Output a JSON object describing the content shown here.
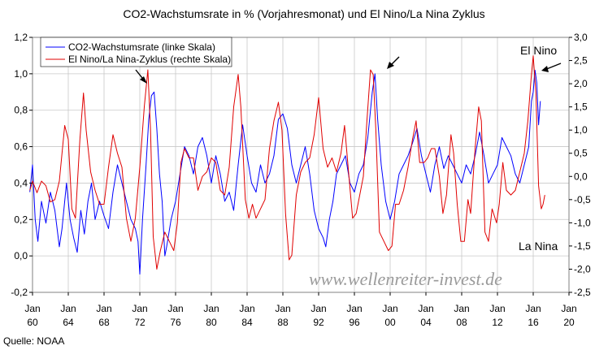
{
  "chart_data": {
    "type": "line",
    "title": "CO2-Wachstumsrate in % (Vorjahresmonat) und El Nino/La Nina Zyklus",
    "x_range": [
      1960,
      2020
    ],
    "x_ticks": [
      {
        "x": 1960,
        "label": "Jan|60"
      },
      {
        "x": 1964,
        "label": "Jan|64"
      },
      {
        "x": 1968,
        "label": "Jan|68"
      },
      {
        "x": 1972,
        "label": "Jan|72"
      },
      {
        "x": 1976,
        "label": "Jan|76"
      },
      {
        "x": 1980,
        "label": "Jan|80"
      },
      {
        "x": 1984,
        "label": "Jan|84"
      },
      {
        "x": 1988,
        "label": "Jan|88"
      },
      {
        "x": 1992,
        "label": "Jan|92"
      },
      {
        "x": 1996,
        "label": "Jan|96"
      },
      {
        "x": 2000,
        "label": "Jan|00"
      },
      {
        "x": 2004,
        "label": "Jan|04"
      },
      {
        "x": 2008,
        "label": "Jan|08"
      },
      {
        "x": 2012,
        "label": "Jan|12"
      },
      {
        "x": 2016,
        "label": "Jan|16"
      },
      {
        "x": 2020,
        "label": "Jan|20"
      }
    ],
    "y_left": {
      "min": -0.2,
      "max": 1.2,
      "step": 0.2,
      "ticks": [
        "-0,2",
        "0,0",
        "0,2",
        "0,4",
        "0,6",
        "0,8",
        "1,0",
        "1,2"
      ]
    },
    "y_right": {
      "min": -2.5,
      "max": 3.0,
      "step": 0.5,
      "ticks": [
        "-2,5",
        "-2,0",
        "-1,5",
        "-1,0",
        "-0,5",
        "0,0",
        "0,5",
        "1,0",
        "1,5",
        "2,0",
        "2,5",
        "3,0"
      ]
    },
    "grid": true,
    "legend_position": "top-left",
    "series": [
      {
        "name": "CO2-Wachstumsrate (linke Skala)",
        "axis": "left",
        "color": "#0000ff",
        "points": [
          [
            1959.7,
            0.35
          ],
          [
            1960.0,
            0.5
          ],
          [
            1960.3,
            0.2
          ],
          [
            1960.6,
            0.08
          ],
          [
            1961.0,
            0.3
          ],
          [
            1961.5,
            0.18
          ],
          [
            1962.0,
            0.35
          ],
          [
            1962.5,
            0.25
          ],
          [
            1963.0,
            0.05
          ],
          [
            1963.3,
            0.15
          ],
          [
            1963.8,
            0.4
          ],
          [
            1964.2,
            0.2
          ],
          [
            1964.6,
            0.1
          ],
          [
            1965.0,
            0.02
          ],
          [
            1965.4,
            0.25
          ],
          [
            1965.8,
            0.12
          ],
          [
            1966.2,
            0.3
          ],
          [
            1966.6,
            0.4
          ],
          [
            1967.0,
            0.2
          ],
          [
            1967.5,
            0.3
          ],
          [
            1968.0,
            0.22
          ],
          [
            1968.5,
            0.15
          ],
          [
            1969.0,
            0.35
          ],
          [
            1969.5,
            0.5
          ],
          [
            1970.0,
            0.4
          ],
          [
            1970.5,
            0.3
          ],
          [
            1971.0,
            0.2
          ],
          [
            1971.5,
            0.15
          ],
          [
            1971.8,
            0.08
          ],
          [
            1972.0,
            -0.1
          ],
          [
            1972.3,
            0.2
          ],
          [
            1972.7,
            0.5
          ],
          [
            1973.0,
            0.75
          ],
          [
            1973.3,
            0.88
          ],
          [
            1973.6,
            0.9
          ],
          [
            1973.9,
            0.7
          ],
          [
            1974.2,
            0.45
          ],
          [
            1974.5,
            0.3
          ],
          [
            1974.8,
            0.0
          ],
          [
            1975.0,
            0.05
          ],
          [
            1975.5,
            0.2
          ],
          [
            1976.0,
            0.3
          ],
          [
            1976.5,
            0.45
          ],
          [
            1977.0,
            0.6
          ],
          [
            1977.5,
            0.55
          ],
          [
            1978.0,
            0.45
          ],
          [
            1978.5,
            0.6
          ],
          [
            1979.0,
            0.65
          ],
          [
            1979.5,
            0.55
          ],
          [
            1980.0,
            0.4
          ],
          [
            1980.5,
            0.55
          ],
          [
            1981.0,
            0.45
          ],
          [
            1981.5,
            0.3
          ],
          [
            1982.0,
            0.35
          ],
          [
            1982.5,
            0.25
          ],
          [
            1983.0,
            0.5
          ],
          [
            1983.5,
            0.72
          ],
          [
            1984.0,
            0.55
          ],
          [
            1984.5,
            0.4
          ],
          [
            1985.0,
            0.35
          ],
          [
            1985.5,
            0.5
          ],
          [
            1986.0,
            0.4
          ],
          [
            1986.5,
            0.45
          ],
          [
            1987.0,
            0.55
          ],
          [
            1987.5,
            0.75
          ],
          [
            1988.0,
            0.78
          ],
          [
            1988.5,
            0.7
          ],
          [
            1989.0,
            0.5
          ],
          [
            1989.5,
            0.4
          ],
          [
            1990.0,
            0.5
          ],
          [
            1990.5,
            0.6
          ],
          [
            1991.0,
            0.45
          ],
          [
            1991.5,
            0.25
          ],
          [
            1992.0,
            0.15
          ],
          [
            1992.5,
            0.1
          ],
          [
            1992.8,
            0.05
          ],
          [
            1993.2,
            0.2
          ],
          [
            1993.6,
            0.3
          ],
          [
            1994.0,
            0.45
          ],
          [
            1994.5,
            0.5
          ],
          [
            1995.0,
            0.55
          ],
          [
            1995.5,
            0.4
          ],
          [
            1996.0,
            0.35
          ],
          [
            1996.5,
            0.45
          ],
          [
            1997.0,
            0.5
          ],
          [
            1997.5,
            0.65
          ],
          [
            1998.0,
            0.9
          ],
          [
            1998.3,
            1.0
          ],
          [
            1998.6,
            0.75
          ],
          [
            1999.0,
            0.5
          ],
          [
            1999.5,
            0.3
          ],
          [
            2000.0,
            0.2
          ],
          [
            2000.5,
            0.3
          ],
          [
            2001.0,
            0.45
          ],
          [
            2001.5,
            0.5
          ],
          [
            2002.0,
            0.55
          ],
          [
            2002.5,
            0.62
          ],
          [
            2003.0,
            0.7
          ],
          [
            2003.5,
            0.55
          ],
          [
            2004.0,
            0.45
          ],
          [
            2004.5,
            0.35
          ],
          [
            2005.0,
            0.5
          ],
          [
            2005.5,
            0.6
          ],
          [
            2006.0,
            0.48
          ],
          [
            2006.5,
            0.55
          ],
          [
            2007.0,
            0.5
          ],
          [
            2007.5,
            0.45
          ],
          [
            2008.0,
            0.4
          ],
          [
            2008.5,
            0.5
          ],
          [
            2009.0,
            0.45
          ],
          [
            2009.5,
            0.55
          ],
          [
            2010.0,
            0.68
          ],
          [
            2010.5,
            0.55
          ],
          [
            2011.0,
            0.4
          ],
          [
            2011.5,
            0.45
          ],
          [
            2012.0,
            0.5
          ],
          [
            2012.5,
            0.65
          ],
          [
            2013.0,
            0.6
          ],
          [
            2013.5,
            0.55
          ],
          [
            2014.0,
            0.45
          ],
          [
            2014.5,
            0.4
          ],
          [
            2015.0,
            0.5
          ],
          [
            2015.5,
            0.6
          ],
          [
            2015.8,
            0.85
          ],
          [
            2016.0,
            0.9
          ],
          [
            2016.2,
            1.02
          ],
          [
            2016.4,
            0.95
          ],
          [
            2016.6,
            0.72
          ],
          [
            2016.8,
            0.85
          ]
        ]
      },
      {
        "name": "El Nino/La Nina-Zyklus (rechte Skala)",
        "axis": "right",
        "color": "#e00000",
        "points": [
          [
            1959.7,
            -0.3
          ],
          [
            1960.0,
            -0.1
          ],
          [
            1960.5,
            -0.35
          ],
          [
            1961.0,
            -0.1
          ],
          [
            1961.5,
            -0.2
          ],
          [
            1962.0,
            -0.55
          ],
          [
            1962.5,
            -0.5
          ],
          [
            1963.0,
            -0.1
          ],
          [
            1963.6,
            1.1
          ],
          [
            1964.0,
            0.8
          ],
          [
            1964.4,
            -0.7
          ],
          [
            1964.8,
            -0.9
          ],
          [
            1965.3,
            0.8
          ],
          [
            1965.7,
            1.8
          ],
          [
            1966.0,
            1.0
          ],
          [
            1966.5,
            0.1
          ],
          [
            1967.0,
            -0.3
          ],
          [
            1967.5,
            -0.6
          ],
          [
            1968.0,
            -0.6
          ],
          [
            1968.5,
            0.2
          ],
          [
            1969.0,
            0.9
          ],
          [
            1969.5,
            0.5
          ],
          [
            1970.0,
            0.2
          ],
          [
            1970.5,
            -0.9
          ],
          [
            1971.0,
            -1.4
          ],
          [
            1971.5,
            -0.9
          ],
          [
            1972.0,
            0.2
          ],
          [
            1972.5,
            1.5
          ],
          [
            1972.9,
            2.3
          ],
          [
            1973.2,
            1.0
          ],
          [
            1973.5,
            -1.3
          ],
          [
            1973.9,
            -2.0
          ],
          [
            1974.3,
            -1.6
          ],
          [
            1974.8,
            -1.2
          ],
          [
            1975.3,
            -1.4
          ],
          [
            1975.8,
            -1.6
          ],
          [
            1976.2,
            -1.0
          ],
          [
            1976.6,
            0.3
          ],
          [
            1977.0,
            0.6
          ],
          [
            1977.5,
            0.4
          ],
          [
            1978.0,
            0.4
          ],
          [
            1978.5,
            -0.3
          ],
          [
            1979.0,
            0.0
          ],
          [
            1979.5,
            0.1
          ],
          [
            1980.0,
            0.4
          ],
          [
            1980.5,
            0.3
          ],
          [
            1981.0,
            -0.3
          ],
          [
            1981.5,
            -0.4
          ],
          [
            1982.0,
            0.2
          ],
          [
            1982.5,
            1.5
          ],
          [
            1983.0,
            2.2
          ],
          [
            1983.3,
            1.5
          ],
          [
            1983.8,
            -0.5
          ],
          [
            1984.2,
            -0.9
          ],
          [
            1984.6,
            -0.6
          ],
          [
            1985.0,
            -0.9
          ],
          [
            1985.5,
            -0.7
          ],
          [
            1986.0,
            -0.5
          ],
          [
            1986.5,
            0.6
          ],
          [
            1987.0,
            1.2
          ],
          [
            1987.5,
            1.6
          ],
          [
            1987.9,
            1.0
          ],
          [
            1988.3,
            -0.8
          ],
          [
            1988.7,
            -1.8
          ],
          [
            1989.0,
            -1.7
          ],
          [
            1989.5,
            -0.4
          ],
          [
            1990.0,
            0.1
          ],
          [
            1990.5,
            0.3
          ],
          [
            1991.0,
            0.4
          ],
          [
            1991.5,
            0.9
          ],
          [
            1992.0,
            1.7
          ],
          [
            1992.5,
            0.6
          ],
          [
            1993.0,
            0.2
          ],
          [
            1993.5,
            0.4
          ],
          [
            1994.0,
            0.1
          ],
          [
            1994.5,
            0.5
          ],
          [
            1994.9,
            1.1
          ],
          [
            1995.3,
            0.2
          ],
          [
            1995.8,
            -0.9
          ],
          [
            1996.2,
            -0.8
          ],
          [
            1996.6,
            -0.4
          ],
          [
            1997.0,
            0.0
          ],
          [
            1997.4,
            1.2
          ],
          [
            1997.8,
            2.3
          ],
          [
            1998.1,
            2.2
          ],
          [
            1998.4,
            1.0
          ],
          [
            1998.8,
            -1.2
          ],
          [
            1999.3,
            -1.4
          ],
          [
            1999.8,
            -1.6
          ],
          [
            2000.2,
            -1.5
          ],
          [
            2000.6,
            -0.6
          ],
          [
            2001.0,
            -0.6
          ],
          [
            2001.5,
            -0.3
          ],
          [
            2002.0,
            0.2
          ],
          [
            2002.5,
            0.8
          ],
          [
            2002.9,
            1.2
          ],
          [
            2003.3,
            0.3
          ],
          [
            2003.8,
            0.3
          ],
          [
            2004.2,
            0.4
          ],
          [
            2004.6,
            0.6
          ],
          [
            2005.0,
            0.6
          ],
          [
            2005.5,
            0.0
          ],
          [
            2005.9,
            -0.8
          ],
          [
            2006.3,
            -0.4
          ],
          [
            2006.8,
            0.9
          ],
          [
            2007.1,
            0.5
          ],
          [
            2007.5,
            -0.6
          ],
          [
            2007.9,
            -1.4
          ],
          [
            2008.3,
            -1.4
          ],
          [
            2008.7,
            -0.5
          ],
          [
            2009.0,
            -0.8
          ],
          [
            2009.5,
            0.6
          ],
          [
            2009.9,
            1.5
          ],
          [
            2010.2,
            1.2
          ],
          [
            2010.6,
            -1.2
          ],
          [
            2011.0,
            -1.4
          ],
          [
            2011.4,
            -0.7
          ],
          [
            2011.9,
            -1.0
          ],
          [
            2012.2,
            -0.6
          ],
          [
            2012.6,
            0.3
          ],
          [
            2013.0,
            -0.3
          ],
          [
            2013.5,
            -0.4
          ],
          [
            2014.0,
            -0.3
          ],
          [
            2014.5,
            0.1
          ],
          [
            2015.0,
            0.5
          ],
          [
            2015.4,
            1.2
          ],
          [
            2015.8,
            2.2
          ],
          [
            2016.0,
            2.6
          ],
          [
            2016.3,
            1.8
          ],
          [
            2016.6,
            -0.2
          ],
          [
            2016.9,
            -0.7
          ],
          [
            2017.1,
            -0.6
          ],
          [
            2017.3,
            -0.4
          ]
        ]
      }
    ],
    "annotations": [
      {
        "text": "El Nino",
        "placement": "top-right"
      },
      {
        "text": "La Nina",
        "placement": "bottom-right"
      }
    ],
    "watermark": "www.wellenreiter-invest.de"
  },
  "source": "Quelle: NOAA",
  "colors": {
    "co2": "#0000ff",
    "enso": "#e00000",
    "grid": "#c8c8c8",
    "frame": "#808080"
  }
}
